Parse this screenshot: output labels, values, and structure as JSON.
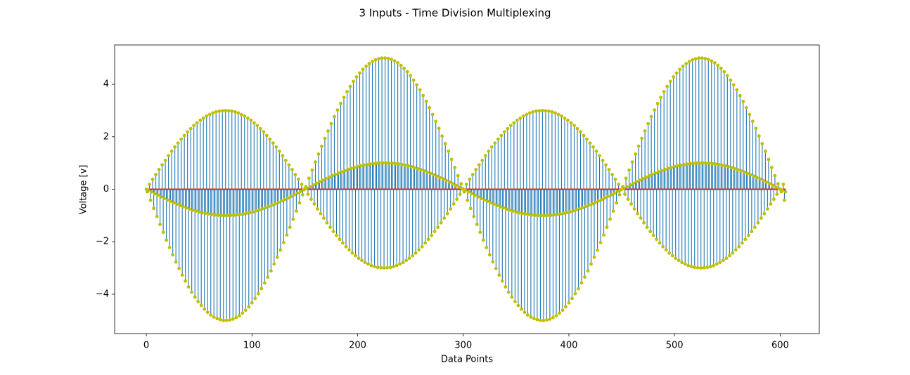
{
  "chart_data": {
    "type": "stem",
    "title": "3 Inputs - Time Division Multiplexing",
    "x_label": "Data Points",
    "y_label": "Voltage [v]",
    "stem_color": "#1f77b4",
    "marker_color": "#bfbf00",
    "baseline_color": "#d62728",
    "xlim": [
      -30,
      637
    ],
    "xticks": [
      0,
      100,
      200,
      300,
      400,
      500,
      600
    ],
    "ylim": [
      -5.5,
      5.5
    ],
    "yticks": [
      {
        "value": -4,
        "label": "−4"
      },
      {
        "value": -2,
        "label": "−2"
      },
      0,
      2,
      4
    ],
    "x": [
      0,
      1,
      2,
      3,
      4,
      5,
      6,
      7,
      8,
      9,
      10,
      11,
      12,
      13,
      14,
      15,
      16,
      17,
      18,
      19,
      20,
      21,
      22,
      23,
      24,
      25,
      26,
      27,
      28,
      29,
      30,
      31,
      32,
      33,
      34,
      35,
      36,
      37,
      38,
      39,
      40,
      41,
      42,
      43,
      44,
      45,
      46,
      47,
      48,
      49,
      50,
      51,
      52,
      53,
      54,
      55,
      56,
      57,
      58,
      59,
      60,
      61,
      62,
      63,
      64,
      65,
      66,
      67,
      68,
      69,
      70,
      71,
      72,
      73,
      74,
      75,
      76,
      77,
      78,
      79,
      80,
      81,
      82,
      83,
      84,
      85,
      86,
      87,
      88,
      89,
      90,
      91,
      92,
      93,
      94,
      95,
      96,
      97,
      98,
      99,
      100,
      101,
      102,
      103,
      104,
      105,
      106,
      107,
      108,
      109,
      110,
      111,
      112,
      113,
      114,
      115,
      116,
      117,
      118,
      119,
      120,
      121,
      122,
      123,
      124,
      125,
      126,
      127,
      128,
      129,
      130,
      131,
      132,
      133,
      134,
      135,
      136,
      137,
      138,
      139,
      140,
      141,
      142,
      143,
      144,
      145,
      146,
      147,
      148,
      149,
      150,
      151,
      152,
      153,
      154,
      155,
      156,
      157,
      158,
      159,
      160,
      161,
      162,
      163,
      164,
      165,
      166,
      167,
      168,
      169,
      170,
      171,
      172,
      173,
      174,
      175,
      176,
      177,
      178,
      179,
      180,
      181,
      182,
      183,
      184,
      185,
      186,
      187,
      188,
      189,
      190,
      191,
      192,
      193,
      194,
      195,
      196,
      197,
      198,
      199,
      200,
      201,
      202,
      203,
      204,
      205,
      206,
      207,
      208,
      209,
      210,
      211,
      212,
      213,
      214,
      215,
      216,
      217,
      218,
      219,
      220,
      221,
      222,
      223,
      224,
      225,
      226,
      227,
      228,
      229,
      230,
      231,
      232,
      233,
      234,
      235,
      236,
      237,
      238,
      239,
      240,
      241,
      242,
      243,
      244,
      245,
      246,
      247,
      248,
      249,
      250,
      251,
      252,
      253,
      254,
      255,
      256,
      257,
      258,
      259,
      260,
      261,
      262,
      263,
      264,
      265,
      266,
      267,
      268,
      269,
      270,
      271,
      272,
      273,
      274,
      275,
      276,
      277,
      278,
      279,
      280,
      281,
      282,
      283,
      284,
      285,
      286,
      287,
      288,
      289,
      290,
      291,
      292,
      293,
      294,
      295,
      296,
      297,
      298,
      299,
      300,
      301,
      302,
      303,
      304,
      305,
      306,
      307,
      308,
      309,
      310,
      311,
      312,
      313,
      314,
      315,
      316,
      317,
      318,
      319,
      320,
      321,
      322,
      323,
      324,
      325,
      326,
      327,
      328,
      329,
      330,
      331,
      332,
      333,
      334,
      335,
      336,
      337,
      338,
      339,
      340,
      341,
      342,
      343,
      344,
      345,
      346,
      347,
      348,
      349,
      350,
      351,
      352,
      353,
      354,
      355,
      356,
      357,
      358,
      359,
      360,
      361,
      362,
      363,
      364,
      365,
      366,
      367,
      368,
      369,
      370,
      371,
      372,
      373,
      374,
      375,
      376,
      377,
      378,
      379,
      380,
      381,
      382,
      383,
      384,
      385,
      386,
      387,
      388,
      389,
      390,
      391,
      392,
      393,
      394,
      395,
      396,
      397,
      398,
      399,
      400,
      401,
      402,
      403,
      404,
      405,
      406,
      407,
      408,
      409,
      410,
      411,
      412,
      413,
      414,
      415,
      416,
      417,
      418,
      419,
      420,
      421,
      422,
      423,
      424,
      425,
      426,
      427,
      428,
      429,
      430,
      431,
      432,
      433,
      434,
      435,
      436,
      437,
      438,
      439,
      440,
      441,
      442,
      443,
      444,
      445,
      446,
      447,
      448,
      449,
      450,
      451,
      452,
      453,
      454,
      455,
      456,
      457,
      458,
      459,
      460,
      461,
      462,
      463,
      464,
      465,
      466,
      467,
      468,
      469,
      470,
      471,
      472,
      473,
      474,
      475,
      476,
      477,
      478,
      479,
      480,
      481,
      482,
      483,
      484,
      485,
      486,
      487,
      488,
      489,
      490,
      491,
      492,
      493,
      494,
      495,
      496,
      497,
      498,
      499,
      500,
      501,
      502,
      503,
      504,
      505,
      506,
      507,
      508,
      509,
      510,
      511,
      512,
      513,
      514,
      515,
      516,
      517,
      518,
      519,
      520,
      521,
      522,
      523,
      524,
      525,
      526,
      527,
      528,
      529,
      530,
      531,
      532,
      533,
      534,
      535,
      536,
      537,
      538,
      539,
      540,
      541,
      542,
      543,
      544,
      545,
      546,
      547,
      548,
      549,
      550,
      551,
      552,
      553,
      554,
      555,
      556,
      557,
      558,
      559,
      560,
      561,
      562,
      563,
      564,
      565,
      566,
      567,
      568,
      569,
      570,
      571,
      572,
      573,
      574,
      575,
      576,
      577,
      578,
      579,
      580,
      581,
      582,
      583,
      584,
      585,
      586,
      587,
      588,
      589,
      590,
      591,
      592,
      593,
      594,
      595,
      596,
      597,
      598,
      599,
      600,
      601,
      602,
      603,
      604,
      605
    ],
    "values": [
      0,
      -0.1,
      -0.04,
      0.19,
      -0.42,
      -0.1,
      0.38,
      -0.73,
      -0.17,
      0.56,
      -1.04,
      -0.23,
      0.75,
      -1.34,
      -0.29,
      0.93,
      -1.64,
      -0.35,
      1.1,
      -1.94,
      -0.41,
      1.28,
      -2.22,
      -0.46,
      1.45,
      -2.5,
      -0.52,
      1.61,
      -2.77,
      -0.57,
      1.76,
      -3.02,
      -0.62,
      1.91,
      -3.27,
      -0.67,
      2.05,
      -3.5,
      -0.71,
      2.19,
      -3.72,
      -0.76,
      2.31,
      -3.92,
      -0.8,
      2.43,
      -4.11,
      -0.83,
      2.53,
      -4.28,
      -0.87,
      2.63,
      -4.43,
      -0.9,
      2.71,
      -4.57,
      -0.92,
      2.79,
      -4.69,
      -0.94,
      2.85,
      -4.79,
      -0.96,
      2.91,
      -4.87,
      -0.98,
      2.95,
      -4.93,
      -0.99,
      2.98,
      -4.97,
      -1,
      2.99,
      -5,
      -1,
      3,
      -5,
      -1,
      2.99,
      -4.98,
      -0.99,
      2.98,
      -4.95,
      -0.99,
      2.95,
      -4.89,
      -0.97,
      2.91,
      -4.82,
      -0.96,
      2.85,
      -4.72,
      -0.94,
      2.79,
      -4.61,
      -0.91,
      2.71,
      -4.48,
      -0.89,
      2.63,
      -4.33,
      -0.86,
      2.53,
      -4.16,
      -0.82,
      2.43,
      -3.98,
      -0.78,
      2.31,
      -3.79,
      -0.74,
      2.19,
      -3.57,
      -0.7,
      2.05,
      -3.35,
      -0.65,
      1.91,
      -3.11,
      -0.6,
      1.76,
      -2.85,
      -0.55,
      1.61,
      -2.59,
      -0.5,
      1.45,
      -2.32,
      -0.44,
      1.28,
      -2.03,
      -0.39,
      1.1,
      -1.74,
      -0.33,
      0.93,
      -1.45,
      -0.27,
      0.75,
      -1.14,
      -0.21,
      0.56,
      -0.83,
      -0.15,
      0.38,
      -0.52,
      -0.08,
      0.19,
      -0.21,
      -0.02,
      0,
      0.1,
      0.04,
      -0.19,
      0.42,
      0.1,
      -0.38,
      0.73,
      0.17,
      -0.56,
      1.04,
      0.23,
      -0.75,
      1.34,
      0.29,
      -0.93,
      1.64,
      0.35,
      -1.1,
      1.94,
      0.41,
      -1.28,
      2.22,
      0.46,
      -1.45,
      2.5,
      0.52,
      -1.61,
      2.77,
      0.57,
      -1.76,
      3.02,
      0.62,
      -1.91,
      3.27,
      0.67,
      -2.05,
      3.5,
      0.71,
      -2.19,
      3.72,
      0.76,
      -2.31,
      3.92,
      0.8,
      -2.43,
      4.11,
      0.83,
      -2.53,
      4.28,
      0.87,
      -2.63,
      4.43,
      0.9,
      -2.71,
      4.57,
      0.92,
      -2.79,
      4.69,
      0.94,
      -2.85,
      4.79,
      0.96,
      -2.91,
      4.87,
      0.98,
      -2.95,
      4.93,
      0.99,
      -2.98,
      4.97,
      1,
      -2.99,
      5,
      1,
      -3,
      5,
      1,
      -2.99,
      4.98,
      0.99,
      -2.98,
      4.95,
      0.99,
      -2.95,
      4.89,
      0.97,
      -2.91,
      4.82,
      0.96,
      -2.85,
      4.72,
      0.94,
      -2.79,
      4.61,
      0.91,
      -2.71,
      4.48,
      0.89,
      -2.63,
      4.33,
      0.86,
      -2.53,
      4.16,
      0.82,
      -2.43,
      3.98,
      0.78,
      -2.31,
      3.79,
      0.74,
      -2.19,
      3.57,
      0.7,
      -2.05,
      3.35,
      0.65,
      -1.91,
      3.11,
      0.6,
      -1.76,
      2.85,
      0.55,
      -1.61,
      2.59,
      0.5,
      -1.45,
      2.32,
      0.44,
      -1.28,
      2.03,
      0.39,
      -1.1,
      1.74,
      0.33,
      -0.93,
      1.45,
      0.27,
      -0.75,
      1.14,
      0.21,
      -0.56,
      0.83,
      0.15,
      -0.38,
      0.52,
      0.08,
      -0.19,
      0.21,
      0.02,
      0,
      -0.1,
      -0.04,
      0.19,
      -0.42,
      -0.1,
      0.38,
      -0.73,
      -0.17,
      0.56,
      -1.04,
      -0.23,
      0.75,
      -1.34,
      -0.29,
      0.93,
      -1.64,
      -0.35,
      1.1,
      -1.94,
      -0.41,
      1.28,
      -2.22,
      -0.46,
      1.45,
      -2.5,
      -0.52,
      1.61,
      -2.77,
      -0.57,
      1.76,
      -3.02,
      -0.62,
      1.91,
      -3.27,
      -0.67,
      2.05,
      -3.5,
      -0.71,
      2.19,
      -3.72,
      -0.76,
      2.31,
      -3.92,
      -0.8,
      2.43,
      -4.11,
      -0.83,
      2.53,
      -4.28,
      -0.87,
      2.63,
      -4.43,
      -0.9,
      2.71,
      -4.57,
      -0.92,
      2.79,
      -4.69,
      -0.94,
      2.85,
      -4.79,
      -0.96,
      2.91,
      -4.87,
      -0.98,
      2.95,
      -4.93,
      -0.99,
      2.98,
      -4.97,
      -1,
      2.99,
      -5,
      -1,
      3,
      -5,
      -1,
      2.99,
      -4.98,
      -0.99,
      2.98,
      -4.95,
      -0.99,
      2.95,
      -4.89,
      -0.97,
      2.91,
      -4.82,
      -0.96,
      2.85,
      -4.72,
      -0.94,
      2.79,
      -4.61,
      -0.91,
      2.71,
      -4.48,
      -0.89,
      2.63,
      -4.33,
      -0.86,
      2.53,
      -4.16,
      -0.82,
      2.43,
      -3.98,
      -0.78,
      2.31,
      -3.79,
      -0.74,
      2.19,
      -3.57,
      -0.7,
      2.05,
      -3.35,
      -0.65,
      1.91,
      -3.11,
      -0.6,
      1.76,
      -2.85,
      -0.55,
      1.61,
      -2.59,
      -0.5,
      1.45,
      -2.32,
      -0.44,
      1.28,
      -2.03,
      -0.39,
      1.1,
      -1.74,
      -0.33,
      0.93,
      -1.45,
      -0.27,
      0.75,
      -1.14,
      -0.21,
      0.56,
      -0.83,
      -0.15,
      0.38,
      -0.52,
      -0.08,
      0.19,
      -0.21,
      -0.02,
      0,
      0.1,
      0.04,
      -0.19,
      0.42,
      0.1,
      -0.38,
      0.73,
      0.17,
      -0.56,
      1.04,
      0.23,
      -0.75,
      1.34,
      0.29,
      -0.93,
      1.64,
      0.35,
      -1.1,
      1.94,
      0.41,
      -1.28,
      2.22,
      0.46,
      -1.45,
      2.5,
      0.52,
      -1.61,
      2.77,
      0.57,
      -1.76,
      3.02,
      0.62,
      -1.91,
      3.27,
      0.67,
      -2.05,
      3.5,
      0.71,
      -2.19,
      3.72,
      0.76,
      -2.31,
      3.92,
      0.8,
      -2.43,
      4.11,
      0.83,
      -2.53,
      4.28,
      0.87,
      -2.63,
      4.43,
      0.9,
      -2.71,
      4.57,
      0.92,
      -2.79,
      4.69,
      0.94,
      -2.85,
      4.79,
      0.96,
      -2.91,
      4.87,
      0.98,
      -2.95,
      4.93,
      0.99,
      -2.98,
      4.97,
      1,
      -2.99,
      5,
      1,
      -3,
      5,
      1,
      -2.99,
      4.98,
      0.99,
      -2.98,
      4.95,
      0.99,
      -2.95,
      4.89,
      0.97,
      -2.91,
      4.82,
      0.96,
      -2.85,
      4.72,
      0.94,
      -2.79,
      4.61,
      0.91,
      -2.71,
      4.48,
      0.89,
      -2.63,
      4.33,
      0.86,
      -2.53,
      4.16,
      0.82,
      -2.43,
      3.98,
      0.78,
      -2.31,
      3.79,
      0.74,
      -2.19,
      3.57,
      0.7,
      -2.05,
      3.35,
      0.65,
      -1.91,
      3.11,
      0.6,
      -1.76,
      2.85,
      0.55,
      -1.61,
      2.59,
      0.5,
      -1.45,
      2.32,
      0.44,
      -1.28,
      2.03,
      0.39,
      -1.1,
      1.74,
      0.33,
      -0.93,
      1.45,
      0.27,
      -0.75,
      1.14,
      0.21,
      -0.56,
      0.83,
      0.15,
      -0.38,
      0.52,
      0.08,
      -0.19,
      0.21,
      0.02,
      0,
      -0.1,
      -0.04,
      0.19,
      -0.42,
      -0.1
    ]
  }
}
